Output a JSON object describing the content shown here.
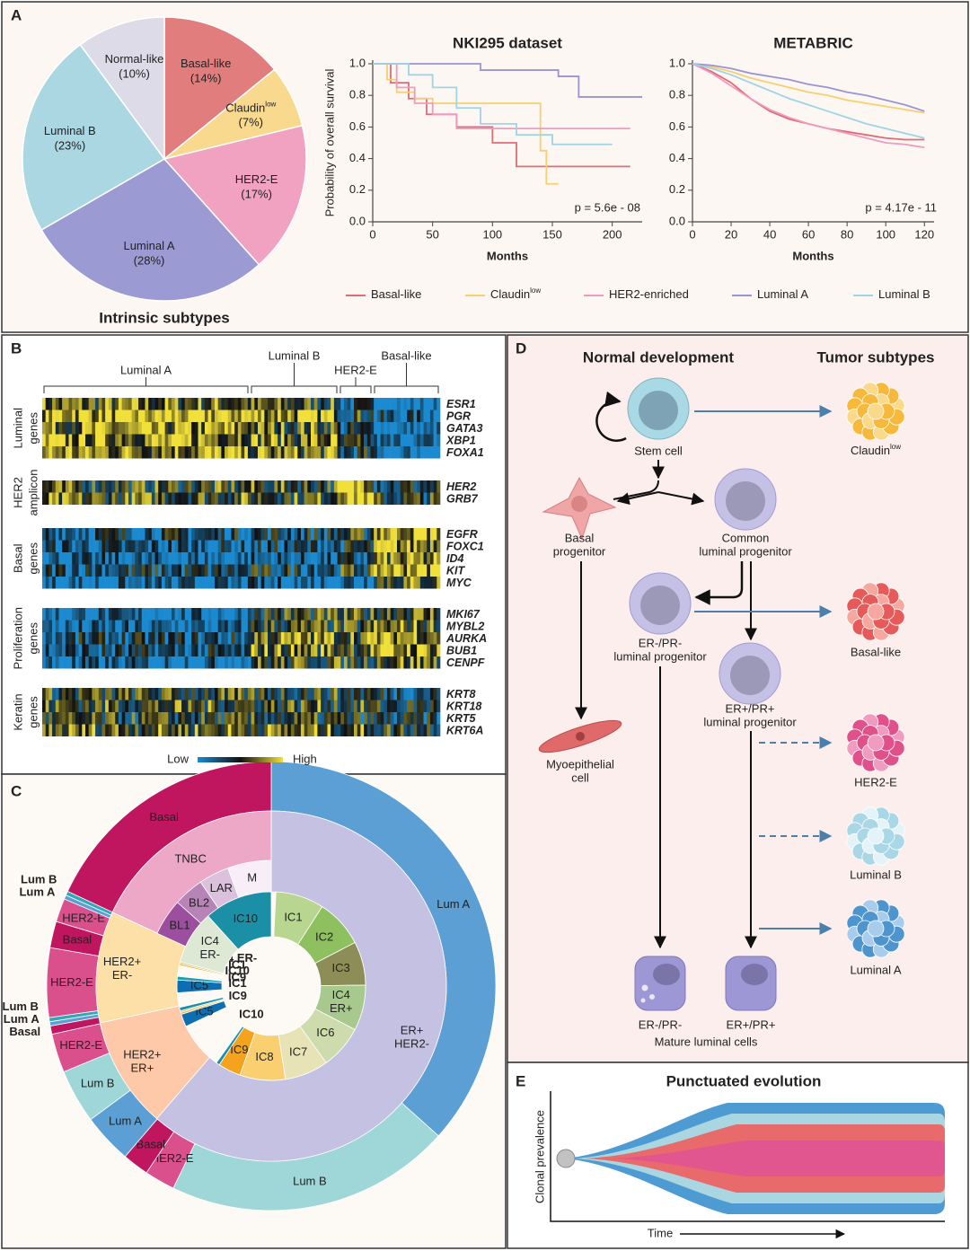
{
  "panel_labels": [
    "A",
    "B",
    "C",
    "D",
    "E"
  ],
  "chart_data": [
    {
      "type": "pie",
      "title": "Intrinsic subtypes",
      "categories": [
        "Basal-like",
        "Claudin",
        "HER2-E",
        "Luminal A",
        "Luminal B",
        "Normal-like"
      ],
      "superscripts": {
        "1": "low"
      },
      "values": [
        14,
        7,
        17,
        28,
        23,
        10
      ],
      "value_labels": [
        "(14%)",
        "(7%)",
        "(17%)",
        "(28%)",
        "(23%)",
        "(10%)"
      ],
      "colors": [
        "#e27d7d",
        "#f8d98e",
        "#f0a2c0",
        "#9c9ad2",
        "#aad7e2",
        "#dddbe7"
      ]
    },
    {
      "type": "line",
      "title": "NKI295 dataset",
      "x_label": "Months",
      "y_label": "Probability of overall survival",
      "annotation": "p = 5.6e - 08",
      "xlim": [
        0,
        225
      ],
      "xticks": [
        0,
        50,
        100,
        150,
        200
      ],
      "ylim": [
        0,
        1
      ],
      "yticks": [
        {
          "value": 0,
          "label": "0.0"
        },
        0.2,
        0.4,
        0.6,
        0.8,
        {
          "value": 1,
          "label": "1.0"
        }
      ],
      "superscripts": {
        "1": "low"
      },
      "series": [
        {
          "name": "Basal-like",
          "color": "#de6b78",
          "x": [
            0,
            15,
            15,
            30,
            30,
            45,
            45,
            70,
            70,
            100,
            100,
            120,
            120,
            215
          ],
          "values": [
            1,
            1,
            0.88,
            0.88,
            0.78,
            0.78,
            0.68,
            0.68,
            0.6,
            0.6,
            0.5,
            0.5,
            0.35,
            0.35
          ]
        },
        {
          "name": "Claudin",
          "color": "#f6cf6e",
          "x": [
            0,
            12,
            12,
            20,
            20,
            35,
            35,
            50,
            50,
            140,
            140,
            145,
            145,
            155
          ],
          "values": [
            1,
            1,
            0.9,
            0.9,
            0.82,
            0.82,
            0.78,
            0.78,
            0.75,
            0.75,
            0.45,
            0.45,
            0.24,
            0.24
          ]
        },
        {
          "name": "HER2-enriched",
          "color": "#f09ac0",
          "x": [
            0,
            20,
            20,
            35,
            35,
            50,
            50,
            70,
            70,
            215
          ],
          "values": [
            1,
            1,
            0.85,
            0.85,
            0.75,
            0.75,
            0.68,
            0.68,
            0.59,
            0.59
          ]
        },
        {
          "name": "Luminal A",
          "color": "#9a94d4",
          "x": [
            0,
            90,
            90,
            155,
            155,
            172,
            172,
            225
          ],
          "values": [
            1,
            1,
            0.96,
            0.96,
            0.92,
            0.92,
            0.79,
            0.79
          ]
        },
        {
          "name": "Luminal B",
          "color": "#9fd3e6",
          "x": [
            0,
            30,
            30,
            50,
            50,
            70,
            70,
            90,
            90,
            120,
            120,
            150,
            150,
            200
          ],
          "values": [
            1,
            1,
            0.93,
            0.93,
            0.85,
            0.85,
            0.72,
            0.72,
            0.62,
            0.62,
            0.55,
            0.55,
            0.49,
            0.49
          ]
        }
      ]
    },
    {
      "type": "line",
      "title": "METABRIC",
      "x_label": "Months",
      "annotation": "p = 4.17e - 11",
      "xlim": [
        0,
        125
      ],
      "xticks": [
        0,
        20,
        40,
        60,
        80,
        100,
        120
      ],
      "ylim": [
        0,
        1
      ],
      "yticks": [
        {
          "value": 0,
          "label": "0.0"
        },
        0.2,
        0.4,
        0.6,
        0.8,
        {
          "value": 1,
          "label": "1.0"
        }
      ],
      "x": [
        0,
        10,
        20,
        30,
        40,
        50,
        60,
        70,
        80,
        90,
        100,
        110,
        120
      ],
      "series": [
        {
          "color": "#de6b78",
          "values": [
            1,
            0.95,
            0.88,
            0.78,
            0.7,
            0.65,
            0.62,
            0.59,
            0.57,
            0.55,
            0.53,
            0.52,
            0.52
          ]
        },
        {
          "color": "#f6cf6e",
          "values": [
            1,
            0.98,
            0.95,
            0.91,
            0.88,
            0.85,
            0.82,
            0.8,
            0.77,
            0.75,
            0.73,
            0.71,
            0.69
          ]
        },
        {
          "color": "#f09ac0",
          "values": [
            1,
            0.94,
            0.86,
            0.78,
            0.71,
            0.66,
            0.62,
            0.59,
            0.56,
            0.53,
            0.5,
            0.49,
            0.47
          ]
        },
        {
          "color": "#9a94d4",
          "values": [
            1,
            0.99,
            0.97,
            0.94,
            0.92,
            0.9,
            0.87,
            0.85,
            0.82,
            0.8,
            0.77,
            0.74,
            0.7
          ]
        },
        {
          "color": "#9fd3e6",
          "values": [
            1,
            0.97,
            0.93,
            0.88,
            0.83,
            0.78,
            0.74,
            0.7,
            0.66,
            0.62,
            0.59,
            0.56,
            0.53
          ]
        }
      ]
    },
    {
      "type": "sunburst",
      "rings": [
        {
          "segments": [
            {
              "label": "Lum A",
              "value": 36.7,
              "color": "#5b9fd4"
            },
            {
              "label": "Lum B",
              "value": 20.6,
              "color": "#9fd6d8"
            },
            {
              "label": "HER2-E",
              "value": 2.2,
              "color": "#d9508d"
            },
            {
              "label": "Basal",
              "value": 1.9,
              "color": "#c0155f"
            },
            {
              "label": "Lum A",
              "value": 3.6,
              "color": "#5b9fd4"
            },
            {
              "label": "Lum B",
              "value": 3.9,
              "color": "#9fd6d8"
            },
            {
              "label": "HER2-E",
              "value": 2.8,
              "color": "#d9508d"
            },
            {
              "label": "Basal",
              "value": 0.6,
              "color": "#c0155f"
            },
            {
              "label": "Lum A",
              "value": 0.3,
              "color": "#5b9fd4"
            },
            {
              "label": "Lum B",
              "value": 0.3,
              "color": "#2fa8b8"
            },
            {
              "label": "HER2-E",
              "value": 5.0,
              "color": "#d9508d"
            },
            {
              "label": "Basal",
              "value": 1.9,
              "color": "#c0155f"
            },
            {
              "label": "HER2-E",
              "value": 1.7,
              "color": "#d9508d"
            },
            {
              "label": "Lum A",
              "value": 0.3,
              "color": "#5b9fd4"
            },
            {
              "label": "Lum B",
              "value": 0.3,
              "color": "#2fa8b8"
            },
            {
              "label": "Basal",
              "value": 18.1,
              "color": "#c0155f"
            }
          ]
        },
        {
          "segments": [
            {
              "label": [
                "ER+",
                "HER2-"
              ],
              "value": 61.4,
              "color": "#c5c1e2"
            },
            {
              "label": [
                "HER2+",
                "ER+"
              ],
              "value": 10.3,
              "color": "#fdc9a8"
            },
            {
              "label": [
                "HER2+",
                "ER-"
              ],
              "value": 10.3,
              "color": "#fde0a8"
            },
            {
              "label": "TNBC",
              "value": 18.1,
              "color": "#eea8c7"
            }
          ]
        },
        {
          "segments": [
            {
              "label": null,
              "value": 81.9,
              "color": null
            },
            {
              "label": "BL1",
              "value": 4.7,
              "color": "#9b4f9e"
            },
            {
              "label": "BL2",
              "value": 3.9,
              "color": "#b684b7"
            },
            {
              "label": "LAR",
              "value": 3.9,
              "color": "#dcc1dc"
            },
            {
              "label": "M",
              "value": 5.6,
              "color": "#f7eef7"
            }
          ]
        },
        {
          "segments": [
            {
              "label": null,
              "value": 0.8,
              "color": null
            },
            {
              "label": "IC1",
              "value": 8.3,
              "color": "#b8d690"
            },
            {
              "label": "IC2",
              "value": 8.3,
              "color": "#8fc060"
            },
            {
              "label": "IC3",
              "value": 7.5,
              "color": "#8d8e57"
            },
            {
              "label": [
                "IC4",
                "ER+"
              ],
              "value": 7.8,
              "color": "#a7c98d"
            },
            {
              "label": "IC6",
              "value": 7.5,
              "color": "#cedcad"
            },
            {
              "label": "IC7",
              "value": 7.5,
              "color": "#e7e3b6"
            },
            {
              "label": "IC8",
              "value": 7.8,
              "color": "#f9cf70"
            },
            {
              "label": "IC9",
              "value": 3.9,
              "color": "#f5a31c"
            },
            {
              "label": "IC10",
              "value": 0.6,
              "color": "#1a8fa8"
            },
            {
              "label": null,
              "value": 8.1,
              "color": null
            },
            {
              "label": "IC5",
              "value": 2.2,
              "color": "#0d6eb2"
            },
            {
              "label": "IC9",
              "value": 0.3,
              "color": "#f5a31c"
            },
            {
              "label": "IC1",
              "value": 0.3,
              "color": "#c8c87a"
            },
            {
              "label": "IC10",
              "value": 0.6,
              "color": "#1a8fa8"
            },
            {
              "label": null,
              "value": 2.5,
              "color": null
            },
            {
              "label": "IC5",
              "value": 2.2,
              "color": "#0d6eb2"
            },
            {
              "label": "IC4 ER-",
              "value": 0.6,
              "color": "#1aa0b0"
            },
            {
              "label": null,
              "value": 1.9,
              "color": null
            },
            {
              "label": "IC9",
              "value": 0.3,
              "color": "#f5a31c"
            },
            {
              "label": "IC1",
              "value": 0.3,
              "color": "#c8c87a"
            },
            {
              "label": [
                "IC4",
                "ER-"
              ],
              "value": 9.2,
              "color": "#dde9d5"
            },
            {
              "label": "IC10",
              "value": 11.7,
              "color": "#1b8fa6"
            }
          ]
        }
      ]
    }
  ],
  "heatmap": {
    "groups": [
      "Luminal A",
      "Luminal B",
      "HER2-E",
      "Basal-like"
    ],
    "row_groups": [
      {
        "label": [
          "Luminal",
          "genes"
        ],
        "genes": [
          "ESR1",
          "PGR",
          "GATA3",
          "XBP1",
          "FOXA1"
        ]
      },
      {
        "label": [
          "HER2",
          "amplicon"
        ],
        "genes": [
          "HER2",
          "GRB7"
        ]
      },
      {
        "label": [
          "Basal",
          "genes"
        ],
        "genes": [
          "EGFR",
          "FOXC1",
          "ID4",
          "KIT",
          "MYC"
        ]
      },
      {
        "label": [
          "Proliferation",
          "genes"
        ],
        "genes": [
          "MKI67",
          "MYBL2",
          "AURKA",
          "BUB1",
          "CENPF"
        ]
      },
      {
        "label": [
          "Keratin",
          "genes"
        ],
        "genes": [
          "KRT8",
          "KRT18",
          "KRT5",
          "KRT6A"
        ]
      }
    ],
    "low": "Low",
    "high": "High"
  },
  "development": {
    "normal_title": "Normal development",
    "tumor_title": "Tumor subtypes",
    "stem_cell": "Stem cell",
    "basal_progenitor": [
      "Basal",
      "progenitor"
    ],
    "common_luminal": [
      "Common",
      "luminal progenitor"
    ],
    "er_neg_progenitor": [
      "ER-/PR-",
      "luminal progenitor"
    ],
    "er_pos_progenitor": [
      "ER+/PR+",
      "luminal progenitor"
    ],
    "myoepithelial": [
      "Myoepithelial",
      "cell"
    ],
    "mature_er_neg": "ER-/PR-",
    "mature_er_pos": "ER+/PR+",
    "mature_caption": "Mature luminal cells",
    "tumor_claudin": "Claudin",
    "tumor_claudin_sup": "low",
    "tumor_basal": "Basal-like",
    "tumor_her2": "HER2-E",
    "tumor_lumb": "Luminal B",
    "tumor_luma": "Luminal A"
  },
  "evolution": {
    "title": "Punctuated evolution",
    "y_label": "Clonal prevalence",
    "x_label": "Time"
  }
}
